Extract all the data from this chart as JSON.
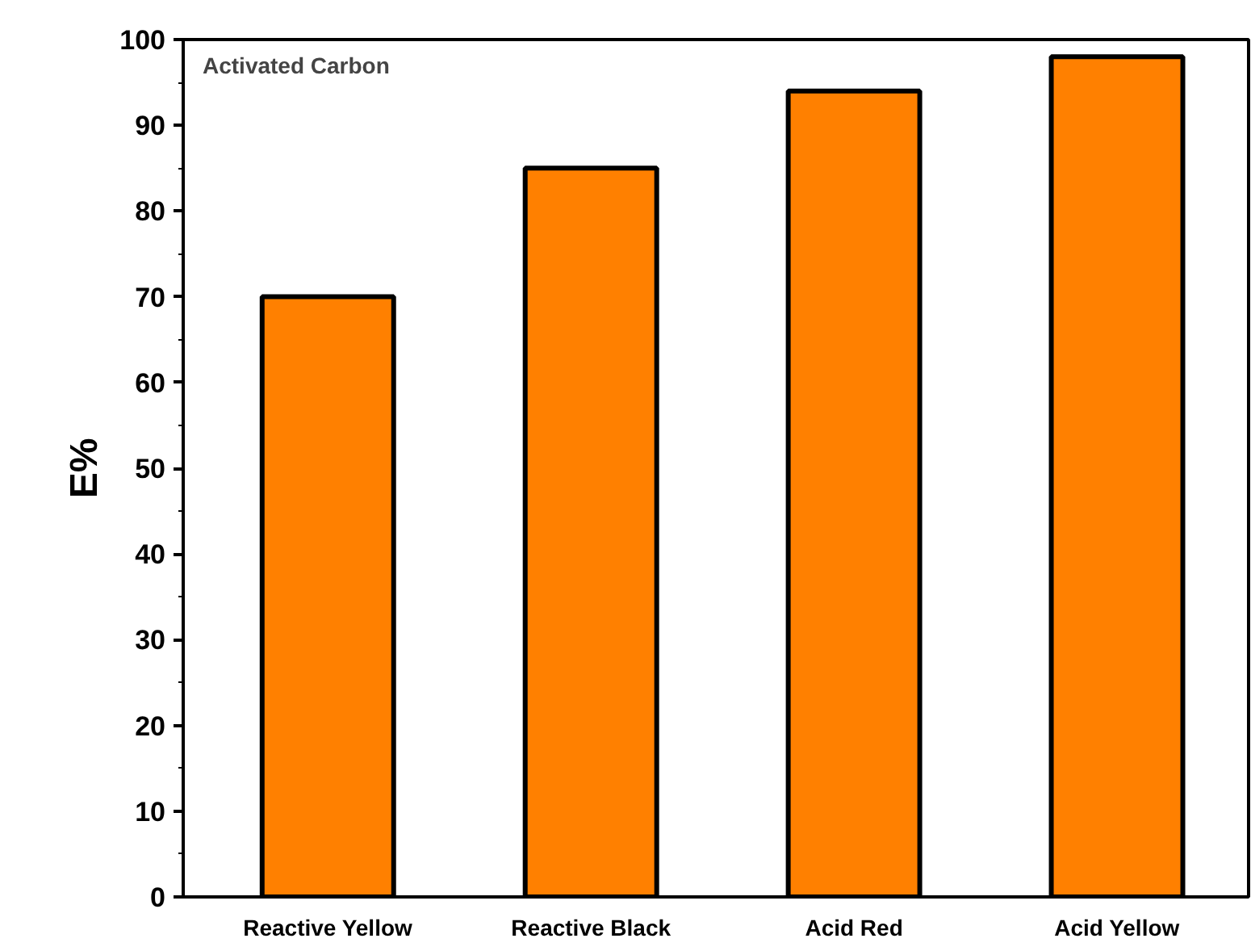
{
  "chart_data": {
    "type": "bar",
    "ylabel": "E%",
    "categories": [
      "Reactive Yellow",
      "Reactive Black",
      "Acid Red",
      "Acid Yellow"
    ],
    "values": [
      70,
      85,
      94,
      98
    ],
    "color": "#ff8000",
    "ylim": [
      0,
      100
    ],
    "yticks": [
      0,
      10,
      20,
      30,
      40,
      50,
      60,
      70,
      80,
      90,
      100
    ],
    "annotations": [
      "Activated Carbon"
    ],
    "grid": false
  }
}
